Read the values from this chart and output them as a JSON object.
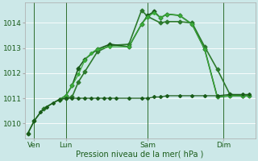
{
  "background_color": "#cce8e8",
  "grid_color": "#b8d8d8",
  "title": "Pression niveau de la mer( hPa )",
  "ylabel_ticks": [
    1010,
    1011,
    1012,
    1013,
    1014
  ],
  "ylim": [
    1009.4,
    1014.8
  ],
  "xlim": [
    0,
    73
  ],
  "day_labels": [
    "Ven",
    "Lun",
    "Sam",
    "Dim"
  ],
  "day_positions": [
    3,
    13,
    39,
    63
  ],
  "vline_color": "#2d6e2d",
  "vline_positions": [
    3,
    13,
    39,
    63
  ],
  "lines": [
    {
      "x": [
        1,
        3,
        6,
        11,
        13,
        15,
        17,
        19,
        23,
        27,
        33,
        37,
        39,
        43,
        45,
        49,
        53,
        57,
        61,
        65,
        69
      ],
      "y": [
        1009.6,
        1010.1,
        1010.6,
        1010.95,
        1011.0,
        1011.05,
        1011.65,
        1012.05,
        1012.85,
        1013.1,
        1013.15,
        1014.5,
        1014.25,
        1014.0,
        1014.05,
        1014.05,
        1014.0,
        1013.05,
        1012.15,
        1011.15,
        1011.1
      ],
      "color": "#2d7a2d",
      "lw": 1.2,
      "marker": "D",
      "ms": 2.5
    },
    {
      "x": [
        11,
        13,
        15,
        17,
        19,
        23,
        27,
        33,
        37,
        39,
        41,
        43,
        45,
        49,
        53,
        57,
        61,
        65,
        69,
        71
      ],
      "y": [
        1010.95,
        1011.1,
        1011.5,
        1012.2,
        1012.55,
        1012.95,
        1013.15,
        1013.05,
        1013.95,
        1014.3,
        1014.45,
        1014.2,
        1014.35,
        1014.3,
        1013.95,
        1012.95,
        1011.05,
        1011.1,
        1011.1,
        1011.1
      ],
      "color": "#1a5c1a",
      "lw": 1.2,
      "marker": "D",
      "ms": 2.5
    },
    {
      "x": [
        11,
        13,
        15,
        17,
        19,
        21,
        23,
        27,
        33,
        37,
        39,
        41,
        43,
        45,
        49,
        53,
        57,
        61,
        65,
        69,
        71
      ],
      "y": [
        1010.95,
        1011.1,
        1011.5,
        1011.95,
        1012.5,
        1012.8,
        1012.95,
        1013.05,
        1013.05,
        1013.95,
        1014.25,
        1014.4,
        1014.2,
        1014.35,
        1014.3,
        1013.95,
        1012.95,
        1011.05,
        1011.1,
        1011.1,
        1011.1
      ],
      "color": "#3aaa3a",
      "lw": 0.9,
      "marker": "D",
      "ms": 2.0
    },
    {
      "x": [
        1,
        3,
        5,
        7,
        9,
        11,
        13,
        15,
        17,
        19,
        21,
        23,
        25,
        27,
        29,
        33,
        37,
        39,
        41,
        43,
        45,
        49,
        53,
        57,
        61,
        65,
        69,
        71
      ],
      "y": [
        1009.6,
        1010.1,
        1010.45,
        1010.65,
        1010.82,
        1010.95,
        1011.0,
        1011.0,
        1011.0,
        1011.0,
        1011.0,
        1011.0,
        1011.0,
        1011.0,
        1011.0,
        1011.0,
        1011.0,
        1011.0,
        1011.05,
        1011.05,
        1011.1,
        1011.1,
        1011.1,
        1011.1,
        1011.1,
        1011.15,
        1011.15,
        1011.15
      ],
      "color": "#1a5c1a",
      "lw": 0.9,
      "marker": "D",
      "ms": 2.0
    }
  ]
}
